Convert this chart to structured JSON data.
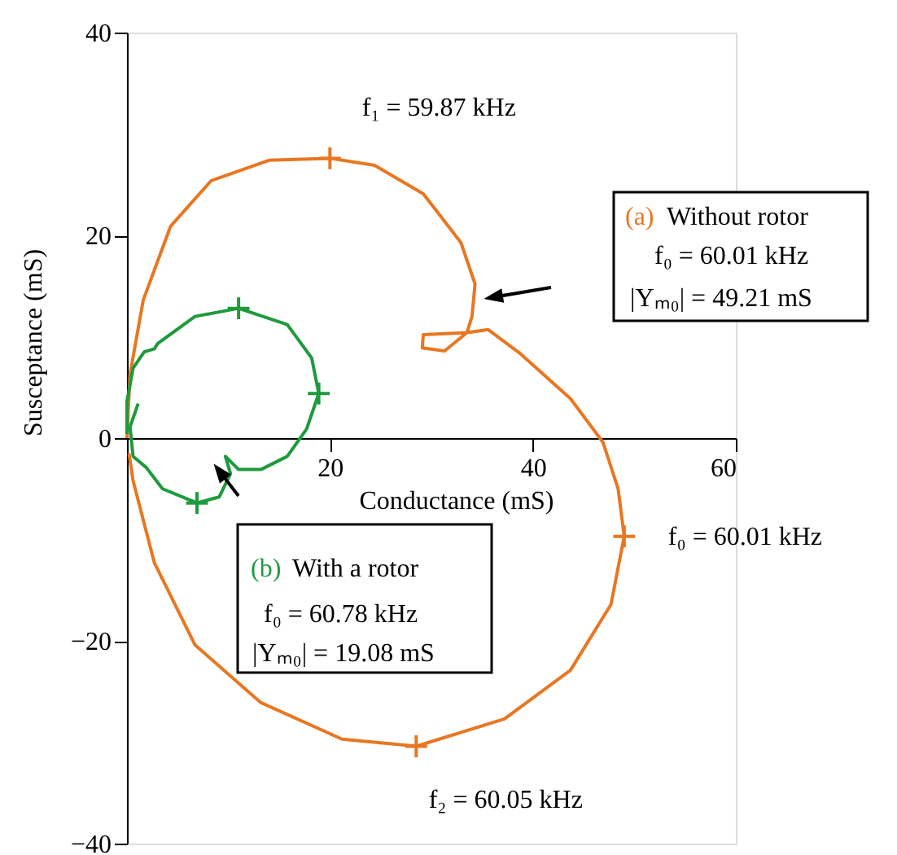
{
  "chart_data": {
    "type": "line",
    "xlabel": "Conductance (mS)",
    "ylabel": "Susceptance (mS)",
    "xlim": [
      0,
      60
    ],
    "ylim": [
      -40,
      40
    ],
    "xticks": [
      20,
      40,
      60
    ],
    "yticks": [
      -40,
      -20,
      0,
      20,
      40
    ],
    "grid": false,
    "series": [
      {
        "color": "#e87722",
        "x": [
          0,
          0.3,
          1.6,
          4.3,
          8.3,
          14,
          20,
          24.4,
          29.2,
          32.9,
          34.3,
          34,
          33.5,
          31.3,
          29.1,
          29.2,
          33.5,
          35.6,
          38.8,
          43.7,
          46.9,
          48.4,
          49,
          47.7,
          43.7,
          37.2,
          28.5,
          21.2,
          13.2,
          6.7,
          2.7,
          0.6,
          0.2
        ],
        "values": [
          0,
          6.3,
          13.6,
          20.9,
          25.4,
          27.4,
          27.6,
          26.9,
          24.1,
          19.3,
          15.2,
          12,
          10.4,
          8.6,
          8.9,
          10.2,
          10.4,
          10.7,
          8.3,
          3.9,
          -0.4,
          -5,
          -9.7,
          -16.4,
          -22.9,
          -27.7,
          -30.4,
          -29.7,
          -26.1,
          -20.4,
          -12.3,
          -4.2,
          -1.5
        ]
      },
      {
        "color": "#1e9a3c",
        "x": [
          1.1,
          0.3,
          0.6,
          1.9,
          3.5,
          6.9,
          9.1,
          10.2,
          9.7,
          10.2,
          11,
          13.2,
          15.8,
          17.7,
          18.9,
          18.2,
          15.8,
          11,
          6.7,
          3,
          2.7,
          1.7,
          0.6,
          0,
          0
        ],
        "values": [
          3.4,
          1.1,
          -1.8,
          -2.9,
          -5,
          -6.4,
          -5.8,
          -3.5,
          -1.8,
          -2.3,
          -3.1,
          -3.1,
          -1.8,
          0.9,
          4.4,
          7.9,
          11.2,
          12.8,
          12,
          9.3,
          8.8,
          8.5,
          6.9,
          3.6,
          0.4
        ]
      },
      {
        "type": "scatter",
        "marker": "cross",
        "color": "#e87722",
        "x": [
          20,
          49,
          28.5
        ],
        "values": [
          27.6,
          -9.7,
          -30.4
        ]
      },
      {
        "type": "scatter",
        "marker": "cross",
        "color": "#1e9a3c",
        "x": [
          11,
          18.9,
          6.9
        ],
        "values": [
          12.8,
          4.4,
          -6.4
        ]
      }
    ],
    "annotations": [
      {
        "text": "f₁ = 59.87 kHz",
        "x": 20,
        "y": 27.6
      },
      {
        "text": "f₀ = 60.01 kHz",
        "x": 49,
        "y": -9.7
      },
      {
        "text": "f₂ = 60.05 kHz",
        "x": 28.5,
        "y": -30.4
      },
      "(a) Without rotor\nf₀ = 60.01 kHz\n|Yₘ₀| = 49.21 mS",
      "(b) With a rotor\nf₀ = 60.78 kHz\n|Yₘ₀| = 19.08 mS"
    ]
  }
}
